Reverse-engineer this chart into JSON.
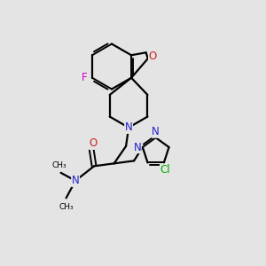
{
  "background_color": "#e4e4e4",
  "atom_colors": {
    "C": "#000000",
    "N": "#2020cc",
    "O": "#cc2020",
    "F": "#cc00cc",
    "Cl": "#00aa00"
  },
  "figsize": [
    3.0,
    3.0
  ],
  "dpi": 100,
  "xlim": [
    0,
    10
  ],
  "ylim": [
    0,
    10
  ]
}
